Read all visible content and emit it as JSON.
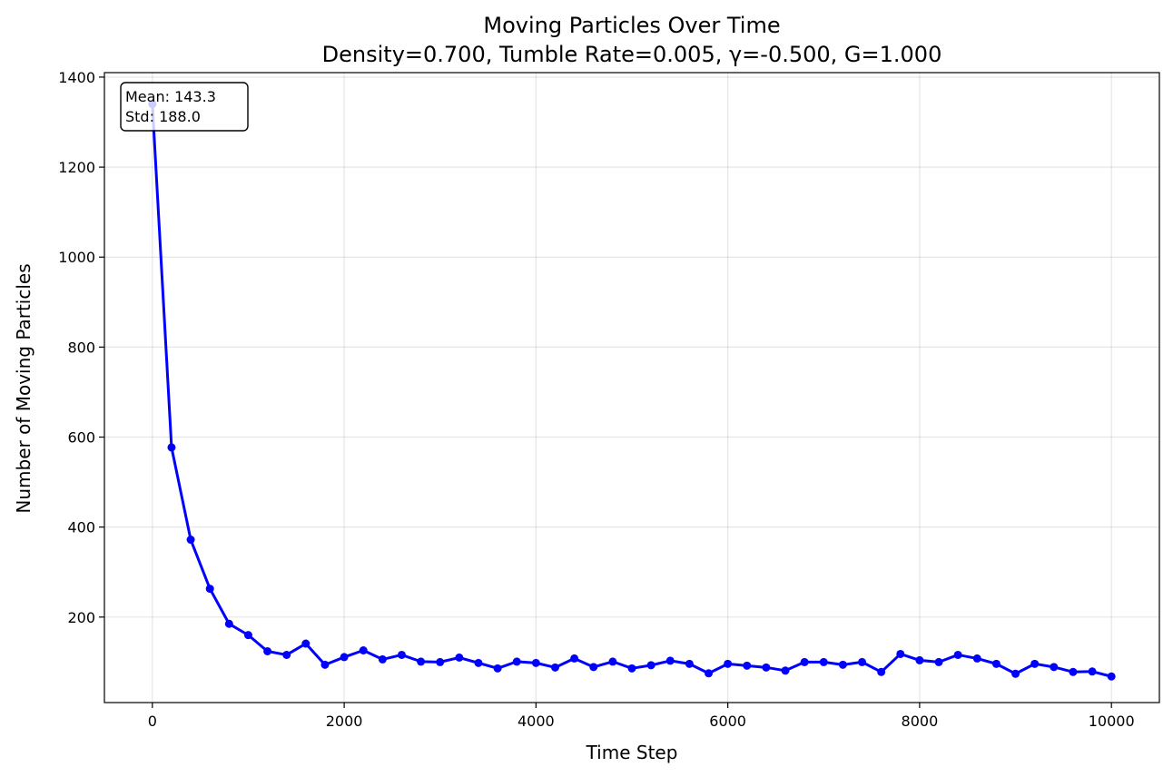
{
  "chart_data": {
    "type": "line",
    "title": "Moving Particles Over Time",
    "subtitle": "Density=0.700, Tumble Rate=0.005, γ=-0.500, G=1.000",
    "xlabel": "Time Step",
    "ylabel": "Number of Moving Particles",
    "xlim": [
      -500,
      10500
    ],
    "ylim": [
      10,
      1410
    ],
    "x_ticks": [
      0,
      2000,
      4000,
      6000,
      8000,
      10000
    ],
    "y_ticks": [
      200,
      400,
      600,
      800,
      1000,
      1200,
      1400
    ],
    "grid": true,
    "series_color": "#0000ff",
    "series": [
      {
        "x": [
          0,
          200,
          400,
          600,
          800,
          1000,
          1200,
          1400,
          1600,
          1800,
          2000,
          2200,
          2400,
          2600,
          2800,
          3000,
          3200,
          3400,
          3600,
          3800,
          4000,
          4200,
          4400,
          4600,
          4800,
          5000,
          5200,
          5400,
          5600,
          5800,
          6000,
          6200,
          6400,
          6600,
          6800,
          7000,
          7200,
          7400,
          7600,
          7800,
          8000,
          8200,
          8400,
          8600,
          8800,
          9000,
          9200,
          9400,
          9600,
          9800,
          10000
        ],
        "y": [
          1340,
          577,
          372,
          263,
          185,
          160,
          124,
          116,
          141,
          94,
          111,
          126,
          106,
          116,
          101,
          100,
          110,
          98,
          86,
          101,
          98,
          88,
          108,
          89,
          101,
          86,
          93,
          103,
          96,
          75,
          96,
          92,
          88,
          81,
          100,
          100,
          94,
          100,
          78,
          118,
          104,
          100,
          116,
          108,
          96,
          74,
          96,
          89,
          78,
          79,
          68
        ]
      }
    ],
    "stats_box": {
      "mean": "Mean: 143.3",
      "std": "Std: 188.0"
    }
  }
}
